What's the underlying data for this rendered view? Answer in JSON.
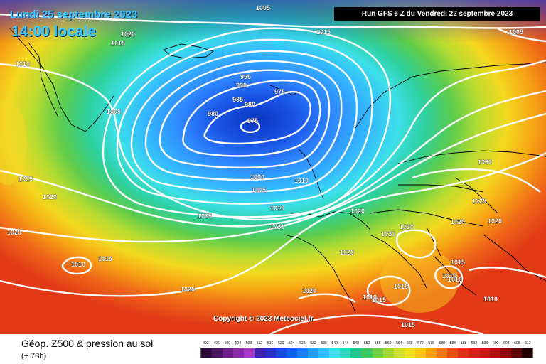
{
  "header": {
    "date": "Lundi 25 septembre 2023",
    "time": "14:00 locale",
    "run": "Run GFS 6 Z du Vendredi 22 septembre 2023"
  },
  "copyright": "Copyright © 2023 Meteociel.fr",
  "footer": {
    "title": "Géop. Z500 & pression au sol",
    "subtitle": "(+ 78h)"
  },
  "legend": {
    "values": [
      "492",
      "496",
      "500",
      "504",
      "508",
      "512",
      "516",
      "520",
      "524",
      "528",
      "532",
      "536",
      "540",
      "544",
      "548",
      "552",
      "556",
      "560",
      "564",
      "568",
      "572",
      "576",
      "580",
      "584",
      "588",
      "592",
      "596",
      "600",
      "604",
      "608",
      "612"
    ],
    "colors": [
      "#2a0a3a",
      "#4a1460",
      "#6a1e86",
      "#8a2aa8",
      "#a838c8",
      "#4020b0",
      "#2830c8",
      "#1848e0",
      "#1060f0",
      "#1880ff",
      "#20a0ff",
      "#30c0ff",
      "#40e0f0",
      "#30d8c0",
      "#20c890",
      "#40c860",
      "#70d040",
      "#a0d830",
      "#d0e030",
      "#f0e020",
      "#f8c818",
      "#f8a010",
      "#f07818",
      "#e85018",
      "#e03018",
      "#d82018",
      "#c81818",
      "#b01010",
      "#900808",
      "#600404",
      "#200000"
    ]
  },
  "isobars": [
    "1020",
    "1015",
    "1010",
    "1005",
    "1015",
    "1005",
    "1005",
    "995",
    "990",
    "985",
    "980",
    "980",
    "975",
    "975",
    "1000",
    "1005",
    "1010",
    "1015",
    "1020",
    "1005",
    "1025",
    "1020",
    "1020",
    "1010",
    "1015",
    "1025",
    "1020",
    "1020",
    "1020",
    "1020",
    "1020",
    "1020",
    "1030",
    "1025",
    "1015",
    "1015",
    "1010",
    "1010",
    "1015",
    "1010",
    "1015",
    "1010",
    "1020"
  ],
  "colors": {
    "accent_title": "#38c8ff",
    "isobar": "#ffffff"
  }
}
